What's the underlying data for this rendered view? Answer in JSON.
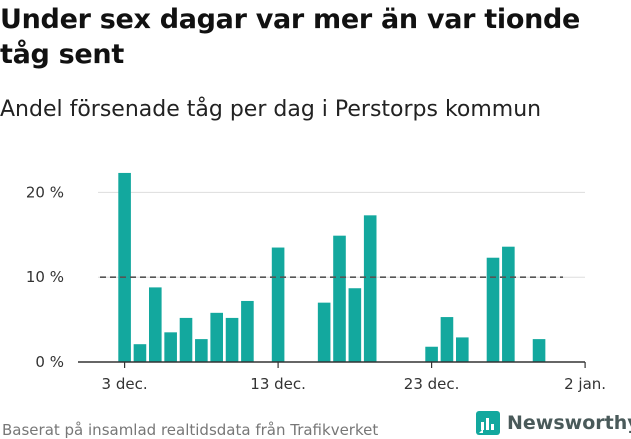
{
  "header": {
    "title": "Under sex dagar var mer än var tionde tåg sent",
    "subtitle": "Andel försenade tåg per dag i Perstorps kommun"
  },
  "footer": {
    "source": "Baserat på insamlad realtidsdata från Trafikverket",
    "brand": "Newsworthy"
  },
  "colors": {
    "bar": "#13a89e",
    "reference": "#555555",
    "grid": "#dddddd",
    "axis": "#333333",
    "brand_icon": "#13a89e"
  },
  "chart_data": {
    "type": "bar",
    "title": "Under sex dagar var mer än var tionde tåg sent",
    "subtitle": "Andel försenade tåg per dag i Perstorps kommun",
    "xlabel": "",
    "ylabel": "",
    "x": [
      "2021-12-03",
      "2021-12-04",
      "2021-12-05",
      "2021-12-06",
      "2021-12-07",
      "2021-12-08",
      "2021-12-09",
      "2021-12-10",
      "2021-12-11",
      "2021-12-12",
      "2021-12-13",
      "2021-12-14",
      "2021-12-15",
      "2021-12-16",
      "2021-12-17",
      "2021-12-18",
      "2021-12-19",
      "2021-12-20",
      "2021-12-21",
      "2021-12-22",
      "2021-12-23",
      "2021-12-24",
      "2021-12-25",
      "2021-12-26",
      "2021-12-27",
      "2021-12-28",
      "2021-12-29",
      "2021-12-30",
      "2021-12-31"
    ],
    "values": [
      22.3,
      2.1,
      8.8,
      3.5,
      5.2,
      2.7,
      5.8,
      5.2,
      7.2,
      null,
      13.5,
      null,
      null,
      7.0,
      14.9,
      8.7,
      17.3,
      null,
      null,
      null,
      1.8,
      5.3,
      2.9,
      null,
      12.3,
      13.6,
      null,
      2.7,
      null
    ],
    "ylim": [
      0,
      23
    ],
    "yticks": [
      0,
      10,
      20
    ],
    "ytick_labels": [
      "0 %",
      "10 %",
      "20 %"
    ],
    "xticks": [
      "2021-12-03",
      "2021-12-13",
      "2021-12-23",
      "2022-01-02"
    ],
    "xtick_labels": [
      "3 dec.",
      "13 dec.",
      "23 dec.",
      "2 jan."
    ],
    "reference_line": 10,
    "grid": true,
    "legend": "none"
  }
}
